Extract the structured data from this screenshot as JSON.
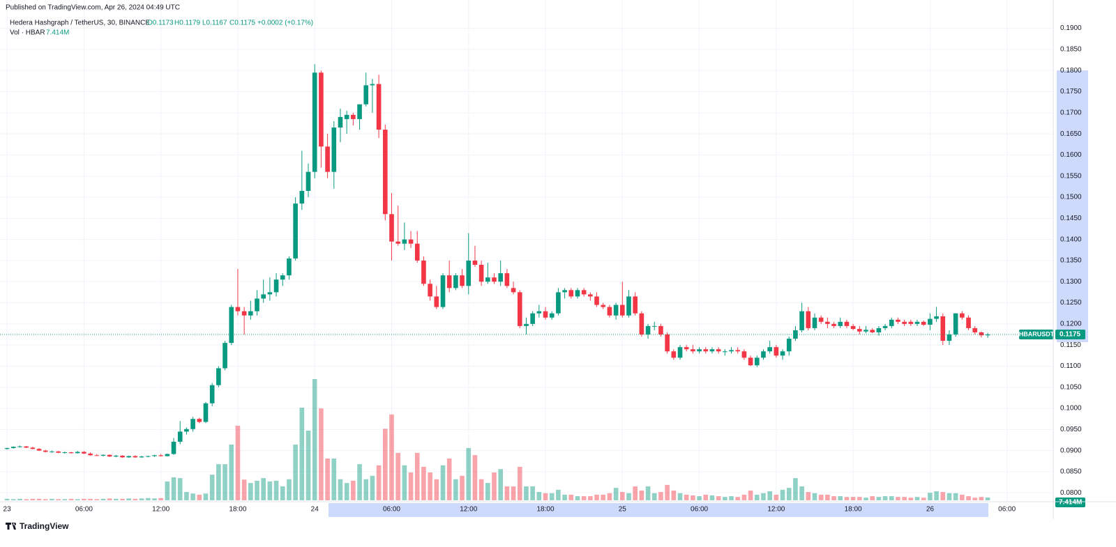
{
  "header": {
    "published": "Published on TradingView.com, Apr 26, 2024 04:49 UTC",
    "symbol": "Hedera Hashgraph / TetherUS, 30, BINANCE",
    "open": "O0.1173",
    "high": "H0.1179",
    "low": "L0.1167",
    "close": "C0.1175",
    "change": "+0.0002 (+0.17%)",
    "volume_title": "Vol · HBAR",
    "volume": "7.414M"
  },
  "footer": {
    "brand": "TradingView"
  },
  "chart_data": {
    "type": "candlestick",
    "up_color": "#089981",
    "down_color": "#f23645",
    "grid": true,
    "open": [
      0.0904,
      0.0906,
      0.0909,
      0.091,
      0.0907,
      0.0904,
      0.09,
      0.0897,
      0.0898,
      0.0895,
      0.0896,
      0.0894,
      0.0897,
      0.0893,
      0.0889,
      0.0888,
      0.089,
      0.0886,
      0.0888,
      0.0884,
      0.0887,
      0.0884,
      0.0886,
      0.0887,
      0.0889,
      0.0887,
      0.0892,
      0.0921,
      0.0945,
      0.0951,
      0.0975,
      0.0968,
      0.1012,
      0.1055,
      0.1095,
      0.1155,
      0.124,
      0.123,
      0.122,
      0.123,
      0.126,
      0.127,
      0.1275,
      0.1305,
      0.1315,
      0.1355,
      0.1485,
      0.1515,
      0.156,
      0.1795,
      0.162,
      0.156,
      0.1665,
      0.1685,
      0.1695,
      0.1685,
      0.172,
      0.1765,
      0.1768,
      0.166,
      0.146,
      0.1395,
      0.139,
      0.14,
      0.139,
      0.135,
      0.1295,
      0.1265,
      0.124,
      0.1315,
      0.1285,
      0.1315,
      0.129,
      0.135,
      0.134,
      0.13,
      0.131,
      0.13,
      0.132,
      0.1285,
      0.1275,
      0.1195,
      0.12,
      0.1225,
      0.123,
      0.1215,
      0.1225,
      0.1275,
      0.128,
      0.1265,
      0.128,
      0.127,
      0.1265,
      0.1245,
      0.124,
      0.122,
      0.1245,
      0.122,
      0.1265,
      0.1225,
      0.1175,
      0.1195,
      0.1195,
      0.1175,
      0.1135,
      0.112,
      0.1145,
      0.114,
      0.1135,
      0.114,
      0.1135,
      0.114,
      0.1135,
      0.1135,
      0.1138,
      0.1135,
      0.112,
      0.1102,
      0.112,
      0.1135,
      0.1145,
      0.1125,
      0.1135,
      0.1165,
      0.1185,
      0.123,
      0.119,
      0.1215,
      0.1205,
      0.12,
      0.1195,
      0.1205,
      0.1195,
      0.1188,
      0.1182,
      0.1186,
      0.118,
      0.119,
      0.1195,
      0.121,
      0.1205,
      0.1205,
      0.12,
      0.1205,
      0.1198,
      0.1212,
      0.1218,
      0.116,
      0.1175,
      0.1225,
      0.1215,
      0.119,
      0.118,
      0.1173
    ],
    "high": [
      0.0907,
      0.091,
      0.0912,
      0.0911,
      0.0909,
      0.0906,
      0.0902,
      0.09,
      0.0899,
      0.0898,
      0.0897,
      0.0899,
      0.0899,
      0.0896,
      0.0892,
      0.0891,
      0.0891,
      0.089,
      0.0889,
      0.0888,
      0.0889,
      0.0888,
      0.0888,
      0.089,
      0.0892,
      0.0893,
      0.093,
      0.097,
      0.0955,
      0.098,
      0.0978,
      0.1015,
      0.106,
      0.11,
      0.116,
      0.1245,
      0.133,
      0.124,
      0.1255,
      0.128,
      0.1305,
      0.131,
      0.132,
      0.132,
      0.136,
      0.15,
      0.161,
      0.158,
      0.1815,
      0.18,
      0.165,
      0.168,
      0.171,
      0.1705,
      0.17,
      0.172,
      0.1795,
      0.178,
      0.179,
      0.1672,
      0.151,
      0.148,
      0.144,
      0.142,
      0.142,
      0.136,
      0.1305,
      0.129,
      0.132,
      0.135,
      0.132,
      0.133,
      0.1415,
      0.1385,
      0.135,
      0.1345,
      0.132,
      0.135,
      0.133,
      0.13,
      0.128,
      0.1215,
      0.123,
      0.1245,
      0.124,
      0.123,
      0.1285,
      0.1285,
      0.1285,
      0.1285,
      0.1285,
      0.1275,
      0.1275,
      0.125,
      0.1245,
      0.125,
      0.13,
      0.128,
      0.1275,
      0.123,
      0.12,
      0.1205,
      0.12,
      0.118,
      0.114,
      0.115,
      0.115,
      0.115,
      0.1145,
      0.1145,
      0.1145,
      0.1145,
      0.114,
      0.1145,
      0.1145,
      0.114,
      0.1125,
      0.1125,
      0.114,
      0.116,
      0.115,
      0.114,
      0.117,
      0.1195,
      0.125,
      0.124,
      0.1225,
      0.122,
      0.1215,
      0.1205,
      0.1215,
      0.121,
      0.12,
      0.1195,
      0.1195,
      0.119,
      0.1195,
      0.12,
      0.1215,
      0.1215,
      0.121,
      0.121,
      0.121,
      0.1208,
      0.1225,
      0.124,
      0.1225,
      0.1185,
      0.1225,
      0.123,
      0.122,
      0.1195,
      0.1182,
      0.1179
    ],
    "low": [
      0.0902,
      0.0905,
      0.0907,
      0.0906,
      0.0903,
      0.0899,
      0.0896,
      0.0895,
      0.0894,
      0.0893,
      0.0893,
      0.0893,
      0.0892,
      0.0888,
      0.0887,
      0.0886,
      0.0885,
      0.0884,
      0.0883,
      0.0883,
      0.0883,
      0.0883,
      0.0884,
      0.0885,
      0.0886,
      0.0886,
      0.089,
      0.0915,
      0.0938,
      0.0945,
      0.0965,
      0.0965,
      0.1005,
      0.105,
      0.109,
      0.115,
      0.122,
      0.1175,
      0.121,
      0.122,
      0.125,
      0.1255,
      0.1265,
      0.129,
      0.1305,
      0.135,
      0.147,
      0.15,
      0.1545,
      0.157,
      0.1545,
      0.152,
      0.163,
      0.165,
      0.167,
      0.166,
      0.1715,
      0.17,
      0.164,
      0.1445,
      0.135,
      0.1385,
      0.1375,
      0.138,
      0.1345,
      0.129,
      0.1255,
      0.1235,
      0.1235,
      0.1275,
      0.128,
      0.1285,
      0.127,
      0.1335,
      0.129,
      0.1295,
      0.1295,
      0.129,
      0.1285,
      0.127,
      0.119,
      0.1175,
      0.1195,
      0.1215,
      0.121,
      0.121,
      0.122,
      0.126,
      0.126,
      0.126,
      0.1265,
      0.1255,
      0.124,
      0.1235,
      0.1215,
      0.121,
      0.1215,
      0.1215,
      0.122,
      0.117,
      0.1165,
      0.1185,
      0.117,
      0.113,
      0.1115,
      0.1115,
      0.1135,
      0.113,
      0.113,
      0.113,
      0.113,
      0.113,
      0.1125,
      0.113,
      0.113,
      0.1115,
      0.11,
      0.1098,
      0.1115,
      0.113,
      0.112,
      0.1115,
      0.1125,
      0.116,
      0.118,
      0.1185,
      0.1185,
      0.12,
      0.119,
      0.119,
      0.119,
      0.119,
      0.1185,
      0.1175,
      0.1178,
      0.1178,
      0.1172,
      0.1185,
      0.119,
      0.12,
      0.1195,
      0.1195,
      0.1195,
      0.1195,
      0.1185,
      0.1205,
      0.115,
      0.115,
      0.117,
      0.121,
      0.1185,
      0.1175,
      0.1168,
      0.1167
    ],
    "close": [
      0.0906,
      0.0909,
      0.091,
      0.0907,
      0.0904,
      0.09,
      0.0897,
      0.0898,
      0.0895,
      0.0896,
      0.0894,
      0.0897,
      0.0893,
      0.0889,
      0.0888,
      0.089,
      0.0886,
      0.0888,
      0.0884,
      0.0887,
      0.0884,
      0.0886,
      0.0887,
      0.0889,
      0.0887,
      0.0892,
      0.0921,
      0.0945,
      0.0951,
      0.0975,
      0.0968,
      0.1012,
      0.1055,
      0.1095,
      0.1155,
      0.124,
      0.123,
      0.122,
      0.123,
      0.126,
      0.127,
      0.1275,
      0.1305,
      0.1315,
      0.1355,
      0.1485,
      0.1515,
      0.156,
      0.1795,
      0.162,
      0.156,
      0.1665,
      0.169,
      0.1695,
      0.1685,
      0.172,
      0.1765,
      0.1768,
      0.166,
      0.146,
      0.1395,
      0.139,
      0.14,
      0.139,
      0.135,
      0.1295,
      0.1265,
      0.124,
      0.1315,
      0.1285,
      0.1315,
      0.129,
      0.135,
      0.134,
      0.13,
      0.131,
      0.13,
      0.132,
      0.129,
      0.1275,
      0.1195,
      0.12,
      0.1225,
      0.123,
      0.1215,
      0.1225,
      0.1275,
      0.128,
      0.1265,
      0.128,
      0.127,
      0.1265,
      0.1245,
      0.124,
      0.122,
      0.1245,
      0.122,
      0.1265,
      0.1225,
      0.1175,
      0.1195,
      0.1195,
      0.1175,
      0.1135,
      0.112,
      0.1145,
      0.114,
      0.1135,
      0.114,
      0.1135,
      0.114,
      0.1135,
      0.1135,
      0.1138,
      0.1135,
      0.112,
      0.1102,
      0.112,
      0.1135,
      0.1145,
      0.1125,
      0.1135,
      0.1165,
      0.1185,
      0.123,
      0.119,
      0.1215,
      0.1205,
      0.12,
      0.1195,
      0.1205,
      0.1195,
      0.1188,
      0.1182,
      0.1186,
      0.118,
      0.119,
      0.1195,
      0.121,
      0.1205,
      0.12,
      0.12,
      0.1205,
      0.1198,
      0.1212,
      0.1218,
      0.116,
      0.1175,
      0.1225,
      0.1215,
      0.119,
      0.118,
      0.1173,
      0.1175
    ],
    "volume": [
      4,
      3,
      4,
      3,
      4,
      4,
      3,
      4,
      3,
      3,
      4,
      3,
      4,
      4,
      3,
      4,
      5,
      4,
      4,
      5,
      4,
      5,
      6,
      5,
      6,
      50,
      61,
      59,
      22,
      18,
      15,
      18,
      68,
      96,
      96,
      148,
      198,
      55,
      46,
      52,
      59,
      50,
      52,
      37,
      56,
      148,
      246,
      185,
      322,
      244,
      111,
      111,
      56,
      46,
      52,
      96,
      56,
      65,
      93,
      190,
      228,
      126,
      93,
      74,
      126,
      89,
      74,
      56,
      93,
      111,
      56,
      65,
      139,
      120,
      56,
      46,
      74,
      83,
      37,
      37,
      89,
      37,
      37,
      22,
      19,
      19,
      28,
      15,
      15,
      11,
      11,
      11,
      15,
      15,
      19,
      33,
      22,
      19,
      37,
      26,
      37,
      19,
      22,
      41,
      26,
      19,
      15,
      13,
      11,
      15,
      13,
      11,
      9,
      11,
      9,
      15,
      26,
      15,
      19,
      24,
      15,
      28,
      33,
      59,
      37,
      22,
      19,
      15,
      15,
      11,
      11,
      9,
      9,
      9,
      7,
      11,
      9,
      11,
      11,
      9,
      9,
      7,
      9,
      7,
      20,
      24,
      22,
      19,
      19,
      15,
      11,
      7,
      9,
      7.414
    ],
    "volume_label": "7.414M",
    "symbol_tag": "HBARUSDT",
    "last_price": {
      "value": 0.1175,
      "label": "0.1175"
    },
    "ylim": [
      0.0779,
      0.1967
    ],
    "yticks": [
      {
        "value": 0.08,
        "label": "0.0800"
      },
      {
        "value": 0.085,
        "label": "0.0850"
      },
      {
        "value": 0.09,
        "label": "0.0900"
      },
      {
        "value": 0.095,
        "label": "0.0950"
      },
      {
        "value": 0.1,
        "label": "0.1000"
      },
      {
        "value": 0.105,
        "label": "0.1050"
      },
      {
        "value": 0.11,
        "label": "0.1100"
      },
      {
        "value": 0.115,
        "label": "0.1150"
      },
      {
        "value": 0.12,
        "label": "0.1200"
      },
      {
        "value": 0.125,
        "label": "0.1250"
      },
      {
        "value": 0.13,
        "label": "0.1300"
      },
      {
        "value": 0.135,
        "label": "0.1350"
      },
      {
        "value": 0.14,
        "label": "0.1400"
      },
      {
        "value": 0.145,
        "label": "0.1450"
      },
      {
        "value": 0.15,
        "label": "0.1500"
      },
      {
        "value": 0.155,
        "label": "0.1550"
      },
      {
        "value": 0.16,
        "label": "0.1600"
      },
      {
        "value": 0.165,
        "label": "0.1650"
      },
      {
        "value": 0.17,
        "label": "0.1700"
      },
      {
        "value": 0.175,
        "label": "0.1750"
      },
      {
        "value": 0.18,
        "label": "0.1800"
      },
      {
        "value": 0.185,
        "label": "0.1850"
      },
      {
        "value": 0.19,
        "label": "0.1900"
      }
    ],
    "xlim": [
      -1.1,
      163
    ],
    "xticks": [
      {
        "value": 0,
        "label": "23"
      },
      {
        "value": 12,
        "label": "06:00"
      },
      {
        "value": 24,
        "label": "12:00"
      },
      {
        "value": 36,
        "label": "18:00"
      },
      {
        "value": 48,
        "label": "24"
      },
      {
        "value": 60,
        "label": "06:00"
      },
      {
        "value": 72,
        "label": "12:00"
      },
      {
        "value": 84,
        "label": "18:00"
      },
      {
        "value": 96,
        "label": "25"
      },
      {
        "value": 108,
        "label": "06:00"
      },
      {
        "value": 120,
        "label": "12:00"
      },
      {
        "value": 132,
        "label": "18:00"
      },
      {
        "value": 144,
        "label": "26"
      },
      {
        "value": 156,
        "label": "06:00"
      }
    ]
  }
}
